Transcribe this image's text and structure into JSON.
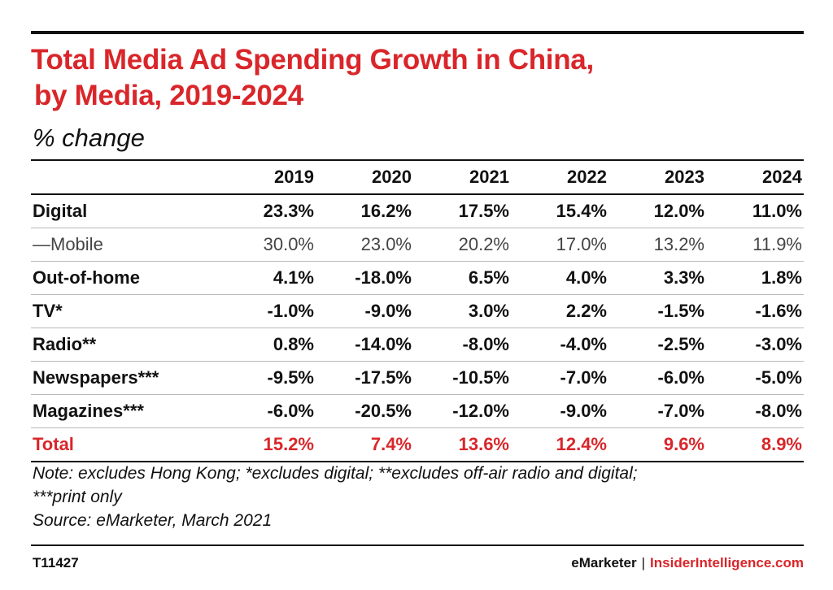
{
  "colors": {
    "accent": "#d9262a",
    "text": "#111111",
    "muted_row": "#444444"
  },
  "title_line_1": "Total Media Ad Spending Growth in China,",
  "title_line_2": "by Media, 2019-2024",
  "subtitle": "% change",
  "chart_data": {
    "type": "table",
    "title": "Total Media Ad Spending Growth in China, by Media, 2019-2024",
    "subtitle": "% change",
    "columns": [
      "",
      "2019",
      "2020",
      "2021",
      "2022",
      "2023",
      "2024"
    ],
    "rows": [
      {
        "label": "Digital",
        "style": "bold",
        "values": [
          "23.3%",
          "16.2%",
          "17.5%",
          "15.4%",
          "12.0%",
          "11.0%"
        ]
      },
      {
        "label": "—Mobile",
        "style": "light",
        "values": [
          "30.0%",
          "23.0%",
          "20.2%",
          "17.0%",
          "13.2%",
          "11.9%"
        ]
      },
      {
        "label": "Out-of-home",
        "style": "bold",
        "values": [
          "4.1%",
          "-18.0%",
          "6.5%",
          "4.0%",
          "3.3%",
          "1.8%"
        ]
      },
      {
        "label": "TV*",
        "style": "bold",
        "values": [
          "-1.0%",
          "-9.0%",
          "3.0%",
          "2.2%",
          "-1.5%",
          "-1.6%"
        ]
      },
      {
        "label": "Radio**",
        "style": "bold",
        "values": [
          "0.8%",
          "-14.0%",
          "-8.0%",
          "-4.0%",
          "-2.5%",
          "-3.0%"
        ]
      },
      {
        "label": "Newspapers***",
        "style": "bold",
        "values": [
          "-9.5%",
          "-17.5%",
          "-10.5%",
          "-7.0%",
          "-6.0%",
          "-5.0%"
        ]
      },
      {
        "label": "Magazines***",
        "style": "bold",
        "values": [
          "-6.0%",
          "-20.5%",
          "-12.0%",
          "-9.0%",
          "-7.0%",
          "-8.0%"
        ]
      },
      {
        "label": "Total",
        "style": "total",
        "values": [
          "15.2%",
          "7.4%",
          "13.6%",
          "12.4%",
          "9.6%",
          "8.9%"
        ]
      }
    ]
  },
  "notes": {
    "line_1": "Note: excludes Hong Kong; *excludes digital; **excludes off-air radio and digital;",
    "line_2": "***print only",
    "source": "Source: eMarketer, March 2021"
  },
  "footer": {
    "chart_id": "T11427",
    "brand_primary": "eMarketer",
    "separator": "|",
    "brand_secondary": "InsiderIntelligence.com"
  }
}
